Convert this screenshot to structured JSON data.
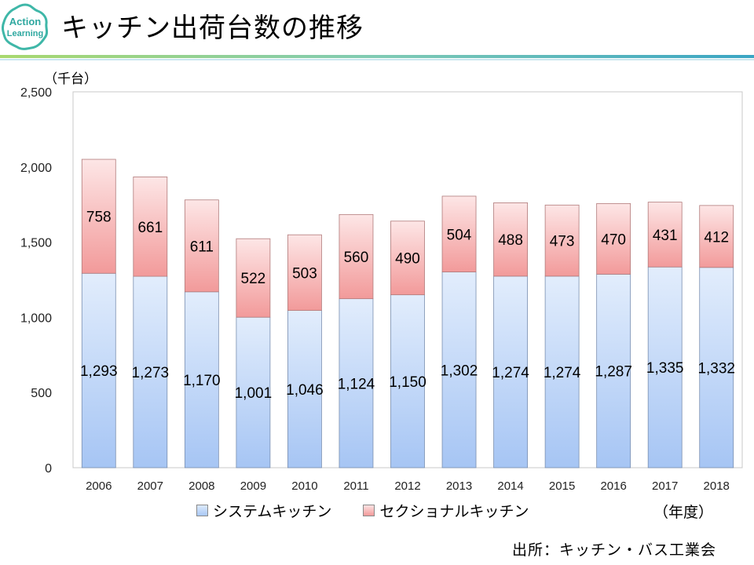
{
  "header": {
    "title": "キッチン出荷台数の推移",
    "logo_text_1": "Action",
    "logo_text_2": "Learning"
  },
  "colors": {
    "system_top": "#dce9fb",
    "system_bottom": "#a6c5f4",
    "sectional_top": "#fde3e3",
    "sectional_bottom": "#f29a9a",
    "rule_teal": "#3aa5c4",
    "rule_green": "#9fd36a"
  },
  "chart_data": {
    "type": "bar",
    "stacked": true,
    "unit_label": "（千台）",
    "x_unit_label": "（年度）",
    "categories": [
      "2006",
      "2007",
      "2008",
      "2009",
      "2010",
      "2011",
      "2012",
      "2013",
      "2014",
      "2015",
      "2016",
      "2017",
      "2018"
    ],
    "series": [
      {
        "name": "システムキッチン",
        "values": [
          1293,
          1273,
          1170,
          1001,
          1046,
          1124,
          1150,
          1302,
          1274,
          1274,
          1287,
          1335,
          1332
        ]
      },
      {
        "name": "セクショナルキッチン",
        "values": [
          758,
          661,
          611,
          522,
          503,
          560,
          490,
          504,
          488,
          473,
          470,
          431,
          412
        ]
      }
    ],
    "ylim": [
      0,
      2500
    ],
    "yticks": [
      0,
      500,
      1000,
      1500,
      2000,
      2500
    ],
    "ytick_labels": [
      "0",
      "500",
      "1,000",
      "1,500",
      "2,000",
      "2,500"
    ],
    "grid": false
  },
  "footer": {
    "source": "出所：キッチン・バス工業会"
  }
}
